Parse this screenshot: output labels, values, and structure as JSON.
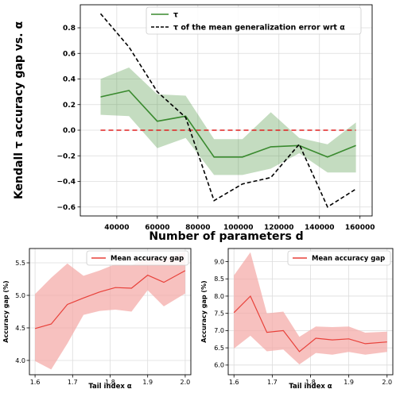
{
  "chart_data": [
    {
      "type": "line",
      "xlabel": "Number of parameters d",
      "ylabel": "Kendall τ accuracy gap vs. α",
      "xlim": [
        22000,
        166000
      ],
      "ylim": [
        -0.67,
        0.98
      ],
      "xticks": [
        40000,
        60000,
        80000,
        100000,
        120000,
        140000,
        160000
      ],
      "xtick_labels": [
        "40000",
        "60000",
        "80000",
        "100000",
        "120000",
        "140000",
        "160000"
      ],
      "yticks": [
        -0.6,
        -0.4,
        -0.2,
        0.0,
        0.2,
        0.4,
        0.6,
        0.8
      ],
      "ytick_labels": [
        "−0.6",
        "−0.4",
        "−0.2",
        "0.0",
        "0.2",
        "0.4",
        "0.6",
        "0.8"
      ],
      "grid": true,
      "legend": "top-right",
      "x": [
        32000,
        46000,
        60000,
        74000,
        88000,
        102000,
        116000,
        130000,
        144000,
        158000
      ],
      "series": [
        {
          "name": "τ",
          "color": "#3a8a2f",
          "style": "solid",
          "values": [
            0.26,
            0.31,
            0.07,
            0.11,
            -0.21,
            -0.21,
            -0.13,
            -0.12,
            -0.21,
            -0.12
          ],
          "lower": [
            0.12,
            0.11,
            -0.14,
            -0.06,
            -0.35,
            -0.35,
            -0.3,
            -0.18,
            -0.33,
            -0.33
          ],
          "upper": [
            0.4,
            0.49,
            0.28,
            0.27,
            -0.07,
            -0.07,
            0.14,
            -0.06,
            -0.11,
            0.06
          ]
        },
        {
          "name": "τ of the mean generalization error wrt α",
          "color": "#000000",
          "style": "dashed",
          "values": [
            0.91,
            0.65,
            0.3,
            0.1,
            -0.55,
            -0.42,
            -0.37,
            -0.11,
            -0.6,
            -0.46
          ]
        }
      ],
      "reference_line": {
        "y": 0.0,
        "color": "#e02020",
        "style": "dashed"
      }
    },
    {
      "type": "line",
      "xlabel": "Tail index α",
      "ylabel": "Accuracy gap (%)",
      "xlim": [
        1.585,
        2.015
      ],
      "ylim": [
        3.78,
        5.72
      ],
      "xticks": [
        1.6,
        1.7,
        1.8,
        1.9,
        2.0
      ],
      "xtick_labels": [
        "1.6",
        "1.7",
        "1.8",
        "1.9",
        "2.0"
      ],
      "yticks": [
        4.0,
        4.5,
        5.0,
        5.5
      ],
      "ytick_labels": [
        "4.0",
        "4.5",
        "5.0",
        "5.5"
      ],
      "grid": true,
      "legend": "top-left",
      "x": [
        1.6,
        1.643,
        1.686,
        1.729,
        1.771,
        1.814,
        1.857,
        1.9,
        1.943,
        2.0
      ],
      "series": [
        {
          "name": "Mean accuracy gap",
          "color": "#e8413a",
          "fill": "#f4a6a4",
          "values": [
            4.49,
            4.56,
            4.86,
            4.96,
            5.05,
            5.12,
            5.11,
            5.31,
            5.2,
            5.38
          ],
          "lower": [
            3.99,
            3.86,
            4.26,
            4.7,
            4.76,
            4.78,
            4.75,
            5.08,
            4.83,
            5.03
          ],
          "upper": [
            5.02,
            5.27,
            5.49,
            5.3,
            5.38,
            5.48,
            5.46,
            5.58,
            5.56,
            5.67
          ]
        }
      ]
    },
    {
      "type": "line",
      "xlabel": "Tail index α",
      "ylabel": "Accuracy gap (%)",
      "xlim": [
        1.585,
        2.015
      ],
      "ylim": [
        5.72,
        9.38
      ],
      "xticks": [
        1.6,
        1.7,
        1.8,
        1.9,
        2.0
      ],
      "xtick_labels": [
        "1.6",
        "1.7",
        "1.8",
        "1.9",
        "2.0"
      ],
      "yticks": [
        6.0,
        6.5,
        7.0,
        7.5,
        8.0,
        8.5,
        9.0
      ],
      "ytick_labels": [
        "6.0",
        "6.5",
        "7.0",
        "7.5",
        "8.0",
        "8.5",
        "9.0"
      ],
      "grid": true,
      "legend": "top-right",
      "x": [
        1.6,
        1.643,
        1.686,
        1.729,
        1.771,
        1.814,
        1.857,
        1.9,
        1.943,
        2.0
      ],
      "series": [
        {
          "name": "Mean accuracy gap",
          "color": "#e8413a",
          "fill": "#f4a6a4",
          "values": [
            7.52,
            8.0,
            6.95,
            7.0,
            6.39,
            6.78,
            6.73,
            6.76,
            6.62,
            6.67
          ],
          "lower": [
            6.48,
            6.85,
            6.4,
            6.45,
            6.02,
            6.35,
            6.3,
            6.38,
            6.3,
            6.38
          ],
          "upper": [
            8.6,
            9.27,
            7.5,
            7.55,
            6.82,
            7.12,
            7.1,
            7.12,
            6.94,
            6.97
          ]
        }
      ]
    }
  ]
}
